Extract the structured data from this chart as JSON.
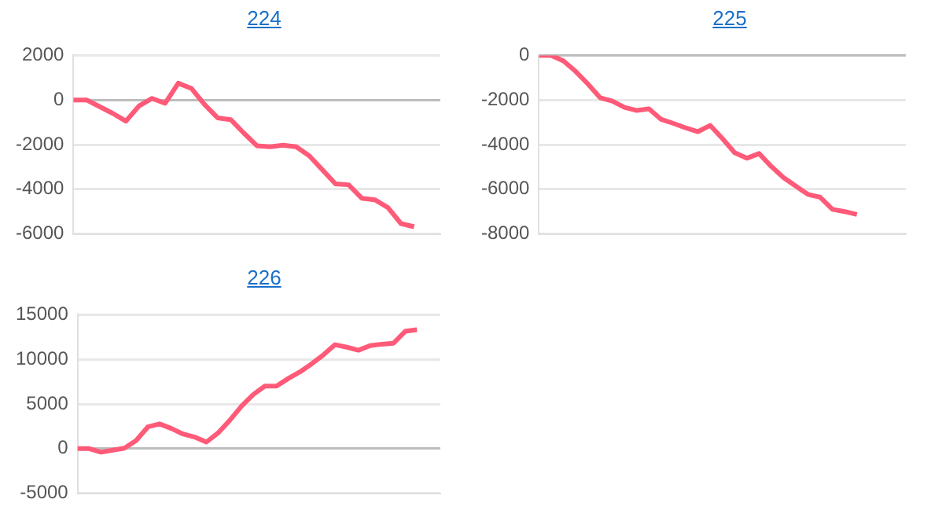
{
  "chart_data": [
    {
      "type": "line",
      "title": "224",
      "categories": [
        null,
        null,
        null,
        null,
        null,
        null,
        null,
        null,
        null,
        null,
        null,
        null,
        null,
        null,
        null,
        null,
        null,
        null,
        null,
        null,
        null,
        null,
        null,
        null,
        null,
        null,
        null,
        null,
        null
      ],
      "series": [
        {
          "color": "#ff5a78",
          "values": [
            0,
            0,
            -300,
            -600,
            -950,
            -270,
            70,
            -150,
            750,
            520,
            -200,
            -800,
            -880,
            -1480,
            -2050,
            -2100,
            -2030,
            -2100,
            -2500,
            -3130,
            -3760,
            -3800,
            -4400,
            -4470,
            -4820,
            -5540,
            -5680,
            null,
            null
          ]
        }
      ],
      "ylim": [
        -6000,
        2000
      ],
      "yticks": [
        -6000,
        -4000,
        -2000,
        0,
        2000
      ],
      "grid": "y",
      "legend": false,
      "marker": "none",
      "tick_labels": "y"
    },
    {
      "type": "line",
      "title": "225",
      "categories": [
        null,
        null,
        null,
        null,
        null,
        null,
        null,
        null,
        null,
        null,
        null,
        null,
        null,
        null,
        null,
        null,
        null,
        null,
        null,
        null,
        null,
        null,
        null,
        null,
        null,
        null,
        null,
        null,
        null,
        null,
        null
      ],
      "series": [
        {
          "color": "#ff5a78",
          "values": [
            0,
            0,
            -250,
            -720,
            -1280,
            -1900,
            -2050,
            -2330,
            -2470,
            -2400,
            -2870,
            -3050,
            -3250,
            -3420,
            -3140,
            -3730,
            -4360,
            -4610,
            -4400,
            -4980,
            -5480,
            -5860,
            -6230,
            -6360,
            -6900,
            -7000,
            -7130,
            null,
            null,
            null,
            null
          ]
        }
      ],
      "ylim": [
        -8000,
        0
      ],
      "yticks": [
        -8000,
        -6000,
        -4000,
        -2000,
        0
      ],
      "grid": "y",
      "legend": false,
      "marker": "none",
      "tick_labels": "y"
    },
    {
      "type": "line",
      "title": "226",
      "categories": [
        null,
        null,
        null,
        null,
        null,
        null,
        null,
        null,
        null,
        null,
        null,
        null,
        null,
        null,
        null,
        null,
        null,
        null,
        null,
        null,
        null,
        null,
        null,
        null,
        null,
        null,
        null,
        null,
        null,
        null,
        null,
        null
      ],
      "series": [
        {
          "color": "#ff5a78",
          "values": [
            0,
            0,
            -400,
            -170,
            50,
            900,
            2430,
            2770,
            2260,
            1640,
            1300,
            730,
            1750,
            3160,
            4750,
            6050,
            7000,
            7000,
            7850,
            8590,
            9490,
            10500,
            11640,
            11360,
            11020,
            11530,
            11700,
            11810,
            13140,
            13310,
            null,
            null
          ]
        }
      ],
      "ylim": [
        -5000,
        15000
      ],
      "yticks": [
        -5000,
        0,
        5000,
        10000,
        15000
      ],
      "grid": "y",
      "legend": false,
      "marker": "none",
      "tick_labels": "y"
    }
  ]
}
